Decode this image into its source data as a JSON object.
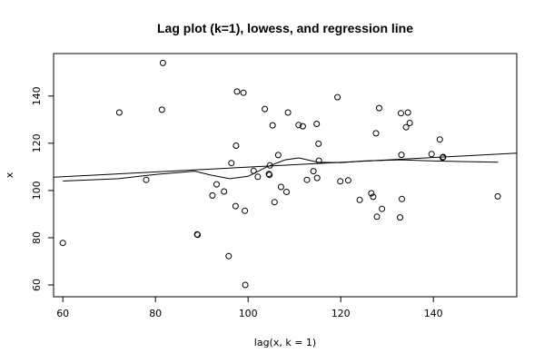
{
  "chart_data": {
    "type": "scatter",
    "title": "Lag plot (k=1), lowess, and regression line",
    "xlabel": "lag(x, k = 1)",
    "ylabel": "x",
    "xlim": [
      58,
      158
    ],
    "ylim": [
      55,
      158
    ],
    "xticks": [
      60,
      80,
      100,
      120,
      140
    ],
    "yticks": [
      60,
      80,
      100,
      120,
      140
    ],
    "grid": false,
    "points": [
      [
        60,
        77.8
      ],
      [
        72.2,
        133
      ],
      [
        78,
        104.5
      ],
      [
        81.4,
        134.2
      ],
      [
        81.6,
        154
      ],
      [
        89,
        81.4
      ],
      [
        89.1,
        81.2
      ],
      [
        92.3,
        97.9
      ],
      [
        93.2,
        102.6
      ],
      [
        94.8,
        99.6
      ],
      [
        95.8,
        72.2
      ],
      [
        96.4,
        111.6
      ],
      [
        97.3,
        93.4
      ],
      [
        97.4,
        119
      ],
      [
        97.6,
        141.9
      ],
      [
        99,
        141.4
      ],
      [
        99.3,
        91.4
      ],
      [
        99.4,
        60
      ],
      [
        101.2,
        108.3
      ],
      [
        102.1,
        105.8
      ],
      [
        103.6,
        134.5
      ],
      [
        104.5,
        107
      ],
      [
        104.6,
        106.6
      ],
      [
        104.7,
        110.6
      ],
      [
        105.3,
        127.6
      ],
      [
        105.7,
        95.1
      ],
      [
        106.5,
        115
      ],
      [
        107.1,
        101.5
      ],
      [
        108.3,
        99.4
      ],
      [
        108.6,
        133
      ],
      [
        110.9,
        127.7
      ],
      [
        111.8,
        127.2
      ],
      [
        112.7,
        104.5
      ],
      [
        114.1,
        108.2
      ],
      [
        114.8,
        128.2
      ],
      [
        114.9,
        105.3
      ],
      [
        115.2,
        119.8
      ],
      [
        115.3,
        112.6
      ],
      [
        119.3,
        139.5
      ],
      [
        119.9,
        103.9
      ],
      [
        121.6,
        104.3
      ],
      [
        124.1,
        96
      ],
      [
        126.6,
        98.8
      ],
      [
        127,
        97.3
      ],
      [
        127.6,
        124.2
      ],
      [
        127.8,
        88.9
      ],
      [
        128.3,
        134.9
      ],
      [
        128.9,
        92.2
      ],
      [
        132.8,
        88.6
      ],
      [
        133,
        132.7
      ],
      [
        133.1,
        115.1
      ],
      [
        133.2,
        96.4
      ],
      [
        134.1,
        126.8
      ],
      [
        134.5,
        133
      ],
      [
        134.9,
        128.6
      ],
      [
        139.6,
        115.4
      ],
      [
        141.4,
        121.6
      ],
      [
        142,
        113.9
      ],
      [
        142.1,
        114.2
      ],
      [
        153.9,
        97.5
      ]
    ],
    "series": [
      {
        "kind": "lowess",
        "x": [
          60,
          72,
          80,
          88.5,
          92,
          96,
          100,
          104,
          108,
          111,
          115,
          120,
          125,
          133,
          140,
          154
        ],
        "y": [
          104,
          105,
          106.8,
          108.2,
          106.5,
          105,
          106,
          110,
          113,
          113.8,
          112,
          111.8,
          112.5,
          113,
          112.5,
          112
        ]
      },
      {
        "kind": "regression",
        "x": [
          58,
          158
        ],
        "y": [
          105.6,
          115.8
        ]
      }
    ]
  }
}
